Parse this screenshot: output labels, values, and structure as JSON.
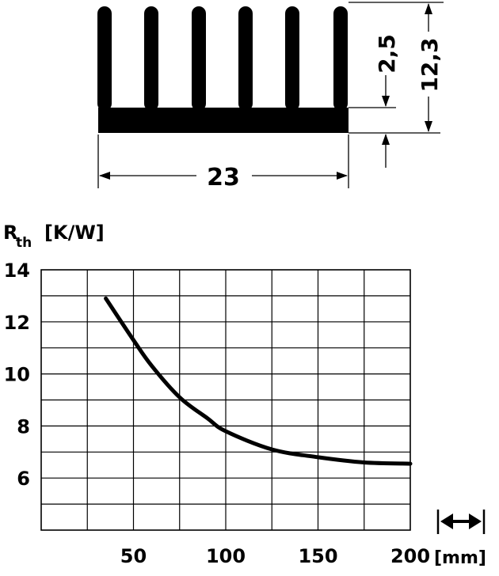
{
  "heatsink": {
    "width_label": "23",
    "fin_gap_label": "2,5",
    "height_label": "12,3"
  },
  "chart_data": {
    "type": "line",
    "ylabel_main": "R",
    "ylabel_sub": "th",
    "ylabel_unit": "[K/W]",
    "xlabel": "[mm]",
    "x_ticks": [
      "50",
      "100",
      "150",
      "200"
    ],
    "y_ticks": [
      "14",
      "12",
      "10",
      "8",
      "6"
    ],
    "xlim": [
      0,
      200
    ],
    "ylim": [
      4,
      14
    ],
    "grid": true,
    "series": [
      {
        "x": [
          35,
          50,
          60,
          75,
          90,
          100,
          125,
          150,
          175,
          200
        ],
        "y": [
          12.9,
          11.3,
          10.3,
          9.1,
          8.3,
          7.8,
          7.1,
          6.8,
          6.6,
          6.55
        ]
      }
    ]
  }
}
